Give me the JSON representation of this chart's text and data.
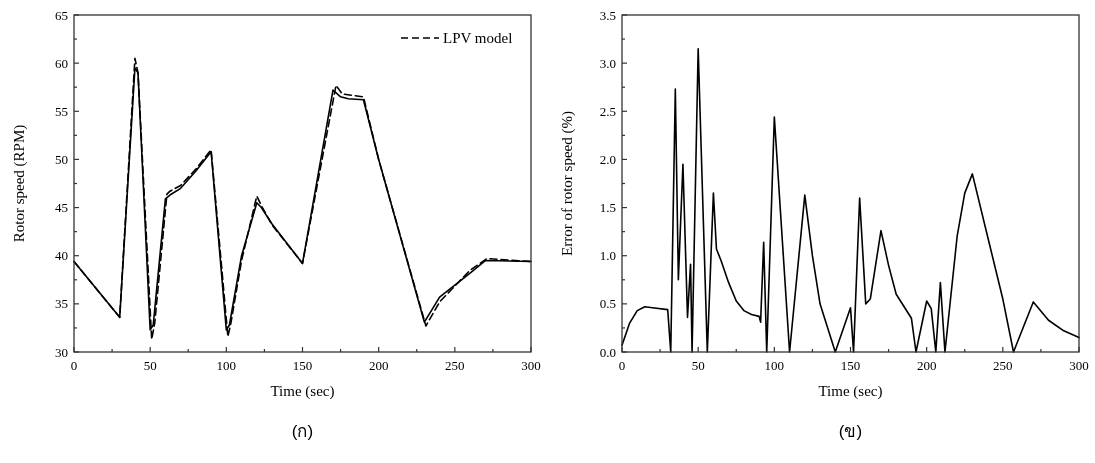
{
  "chart_data": [
    {
      "type": "line",
      "xlabel": "Time (sec)",
      "ylabel": "Rotor speed (RPM)",
      "annotations": [
        "(ก)"
      ],
      "xlim": [
        0,
        300
      ],
      "ylim": [
        30,
        65
      ],
      "xticks": [
        0,
        {
          "value": 25,
          "label": null
        },
        50,
        {
          "value": 75,
          "label": null
        },
        100,
        {
          "value": 125,
          "label": null
        },
        150,
        {
          "value": 175,
          "label": null
        },
        200,
        {
          "value": 225,
          "label": null
        },
        250,
        {
          "value": 275,
          "label": null
        },
        300
      ],
      "yticks": [
        30,
        {
          "value": 32.5,
          "label": null
        },
        35,
        {
          "value": 37.5,
          "label": null
        },
        40,
        {
          "value": 42.5,
          "label": null
        },
        45,
        {
          "value": 47.5,
          "label": null
        },
        50,
        {
          "value": 52.5,
          "label": null
        },
        55,
        {
          "value": 57.5,
          "label": null
        },
        60,
        {
          "value": 62.5,
          "label": null
        },
        65
      ],
      "legend": "top right",
      "grid": false,
      "marker": "none",
      "series": [
        {
          "color": "#000000",
          "line_style": "solid",
          "x": [
            0,
            30,
            40,
            42,
            50,
            52,
            60,
            63,
            70,
            80,
            90,
            100,
            102,
            110,
            120,
            123,
            130,
            150,
            170,
            175,
            180,
            190,
            200,
            230,
            240,
            260,
            270,
            300
          ],
          "values": [
            39.4,
            33.6,
            59.5,
            59,
            32.3,
            32.8,
            45.9,
            46.3,
            47,
            48.8,
            50.8,
            32.3,
            32.8,
            40,
            45.5,
            45,
            43.3,
            39.2,
            57.2,
            56.5,
            56.3,
            56.2,
            50,
            33.1,
            35.7,
            38.2,
            39.5,
            39.4
          ]
        },
        {
          "name": "LPV model",
          "color": "#000000",
          "line_style": "dashed",
          "x": [
            0,
            30,
            40,
            42,
            51,
            53,
            61,
            63,
            70,
            80,
            90,
            101,
            103,
            110,
            120,
            123,
            130,
            150,
            172,
            176,
            190,
            200,
            231,
            240,
            260,
            271,
            300
          ],
          "values": [
            39.4,
            33.6,
            60.5,
            59,
            31.3,
            33,
            46.4,
            46.7,
            47.3,
            49,
            51,
            31.6,
            33,
            39.5,
            46.2,
            45.2,
            43.2,
            39.2,
            57.7,
            56.8,
            56.5,
            50,
            32.7,
            35.2,
            38.5,
            39.7,
            39.4
          ]
        }
      ]
    },
    {
      "type": "line",
      "xlabel": "Time (sec)",
      "ylabel": "Error of rotor speed (%)",
      "annotations": [
        "(ข)"
      ],
      "xlim": [
        0,
        300
      ],
      "ylim": [
        0,
        3.5
      ],
      "xticks": [
        0,
        {
          "value": 25,
          "label": null
        },
        50,
        {
          "value": 75,
          "label": null
        },
        100,
        {
          "value": 125,
          "label": null
        },
        150,
        {
          "value": 175,
          "label": null
        },
        200,
        {
          "value": 225,
          "label": null
        },
        250,
        {
          "value": 275,
          "label": null
        },
        300
      ],
      "yticks": [
        {
          "value": 0,
          "label": "0.0"
        },
        {
          "value": 0.25,
          "label": null
        },
        0.5,
        {
          "value": 0.75,
          "label": null
        },
        {
          "value": 1,
          "label": "1.0"
        },
        {
          "value": 1.25,
          "label": null
        },
        1.5,
        {
          "value": 1.75,
          "label": null
        },
        {
          "value": 2,
          "label": "2.0"
        },
        {
          "value": 2.25,
          "label": null
        },
        2.5,
        {
          "value": 2.75,
          "label": null
        },
        {
          "value": 3,
          "label": "3.0"
        },
        {
          "value": 3.25,
          "label": null
        },
        3.5
      ],
      "grid": false,
      "marker": "none",
      "series": [
        {
          "color": "#000000",
          "line_style": "solid",
          "x": [
            0,
            5,
            10,
            15,
            20,
            30,
            32,
            35,
            37,
            40,
            43,
            45,
            46,
            50,
            56,
            60,
            62,
            65,
            70,
            75,
            80,
            85,
            90,
            91,
            93,
            95,
            100,
            110,
            120,
            125,
            130,
            140,
            150,
            152,
            156,
            160,
            163,
            170,
            175,
            180,
            190,
            193,
            200,
            203,
            206,
            209,
            212,
            220,
            225,
            230,
            240,
            250,
            257,
            270,
            280,
            290,
            300
          ],
          "values": [
            0.07,
            0.3,
            0.43,
            0.47,
            0.46,
            0.44,
            0,
            2.73,
            0.75,
            1.95,
            0.36,
            0.91,
            0,
            3.15,
            0,
            1.65,
            1.07,
            0.95,
            0.72,
            0.53,
            0.43,
            0.39,
            0.37,
            0.31,
            1.14,
            0,
            2.44,
            0,
            1.63,
            1.0,
            0.5,
            0,
            0.46,
            0,
            1.6,
            0.5,
            0.55,
            1.26,
            0.9,
            0.6,
            0.35,
            0,
            0.53,
            0.45,
            0,
            0.72,
            0,
            1.2,
            1.65,
            1.85,
            1.2,
            0.55,
            0,
            0.52,
            0.33,
            0.22,
            0.15
          ]
        }
      ]
    }
  ]
}
